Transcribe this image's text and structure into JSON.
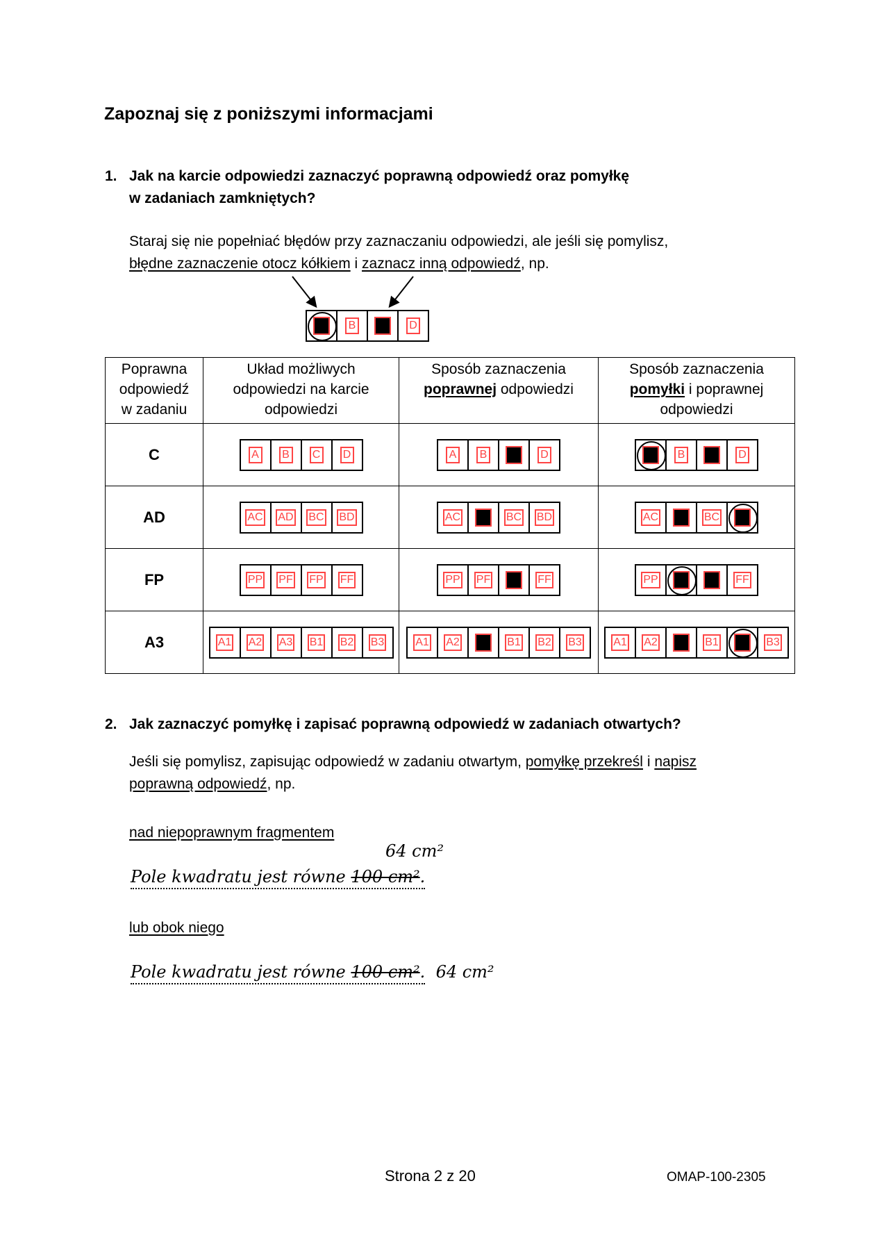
{
  "heading": "Zapoznaj się z poniższymi informacjami",
  "q1": {
    "number": "1.",
    "line1": "Jak na karcie odpowiedzi zaznaczyć poprawną odpowiedź oraz pomyłkę",
    "line2": "w zadaniach zamkniętych?",
    "para_line1": "Staraj się nie popełniać błędów przy zaznaczaniu odpowiedzi, ale jeśli się pomylisz,",
    "para_u1": "błędne zaznaczenie otocz kółkiem",
    "para_mid": " i ",
    "para_u2": "zaznacz inną odpowiedź",
    "para_end": ", np.",
    "example": {
      "options": [
        "A",
        "B",
        "C",
        "D"
      ],
      "filled": [
        0,
        2
      ],
      "circled": [
        0
      ]
    }
  },
  "table": {
    "headers": [
      {
        "lines": [
          "Poprawna",
          "odpowiedź",
          "w zadaniu"
        ]
      },
      {
        "lines": [
          "Układ możliwych",
          "odpowiedzi na karcie",
          "odpowiedzi"
        ]
      },
      {
        "bold": "poprawnej",
        "pre": "Sposób zaznaczenia",
        "post": " odpowiedzi",
        "last": ""
      },
      {
        "bold": "pomyłki",
        "pre": "Sposób zaznaczenia",
        "post": " i poprawnej",
        "last": "odpowiedzi"
      }
    ],
    "rows": [
      {
        "answer": "C",
        "options": [
          "A",
          "B",
          "C",
          "D"
        ],
        "correct": {
          "filled": [
            2
          ],
          "circled": []
        },
        "mistake": {
          "filled": [
            0,
            2
          ],
          "circled": [
            0
          ]
        }
      },
      {
        "answer": "AD",
        "options": [
          "AC",
          "AD",
          "BC",
          "BD"
        ],
        "correct": {
          "filled": [
            1
          ],
          "circled": []
        },
        "mistake": {
          "filled": [
            1,
            3
          ],
          "circled": [
            3
          ]
        }
      },
      {
        "answer": "FP",
        "options": [
          "PP",
          "PF",
          "FP",
          "FF"
        ],
        "correct": {
          "filled": [
            2
          ],
          "circled": []
        },
        "mistake": {
          "filled": [
            1,
            2
          ],
          "circled": [
            1
          ]
        }
      },
      {
        "answer": "A3",
        "options": [
          "A1",
          "A2",
          "A3",
          "B1",
          "B2",
          "B3"
        ],
        "correct": {
          "filled": [
            2
          ],
          "circled": []
        },
        "mistake": {
          "filled": [
            2,
            4
          ],
          "circled": [
            4
          ]
        }
      }
    ]
  },
  "q2": {
    "number": "2.",
    "title": "Jak zaznaczyć pomyłkę i zapisać poprawną odpowiedź w zadaniach otwartych?",
    "para_pre": "Jeśli się pomylisz, zapisując odpowiedź w zadaniu otwartym, ",
    "para_u1": "pomyłkę przekreśl",
    "para_mid": " i ",
    "para_u2": "napisz",
    "para_u3": "poprawną odpowiedź",
    "para_end": ", np.",
    "label_above": "nad niepoprawnym fragmentem",
    "label_beside": "lub obok niego",
    "hw_text": "Pole kwadratu jest równe ",
    "hw_wrong": "100 cm²",
    "hw_dot": ".",
    "hw_correct": "64 cm²"
  },
  "footer": {
    "page": "Strona 2 z 20",
    "code": "OMAP-100-2305"
  },
  "colors": {
    "option_red": "#ff4444",
    "ink": "#000000"
  }
}
